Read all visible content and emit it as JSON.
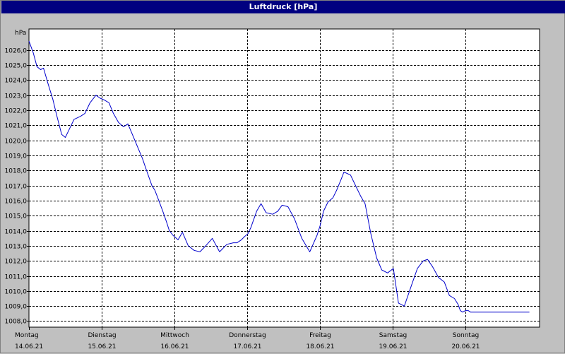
{
  "window": {
    "title": "Luftdruck [hPa]"
  },
  "chart_data": {
    "type": "line",
    "title": "Luftdruck [hPa]",
    "ylabel": "hPa",
    "xlabel": "",
    "ylim": [
      1007.6,
      1027.4
    ],
    "xlim": [
      0,
      7
    ],
    "grid": true,
    "y_ticks": [
      1008,
      1009,
      1010,
      1011,
      1012,
      1013,
      1014,
      1015,
      1016,
      1017,
      1018,
      1019,
      1020,
      1021,
      1022,
      1023,
      1024,
      1025,
      1026
    ],
    "y_tick_labels": [
      "1008,0",
      "1009,0",
      "1010,0",
      "1011,0",
      "1012,0",
      "1013,0",
      "1014,0",
      "1015,0",
      "1016,0",
      "1017,0",
      "1018,0",
      "1019,0",
      "1020,0",
      "1021,0",
      "1022,0",
      "1023,0",
      "1024,0",
      "1025,0",
      "1026,0"
    ],
    "x_ticks": [
      {
        "day": "Montag",
        "date": "14.06.21"
      },
      {
        "day": "Dienstag",
        "date": "15.06.21"
      },
      {
        "day": "Mittwoch",
        "date": "16.06.21"
      },
      {
        "day": "Donnerstag",
        "date": "17.06.21"
      },
      {
        "day": "Freitag",
        "date": "18.06.21"
      },
      {
        "day": "Samstag",
        "date": "19.06.21"
      },
      {
        "day": "Sonntag",
        "date": "20.06.21"
      }
    ],
    "series": [
      {
        "color": "#0000cc",
        "x": [
          0.0,
          0.06,
          0.11,
          0.16,
          0.2,
          0.26,
          0.33,
          0.38,
          0.45,
          0.5,
          0.56,
          0.62,
          0.71,
          0.77,
          0.84,
          0.92,
          0.98,
          1.03,
          1.1,
          1.16,
          1.23,
          1.3,
          1.36,
          1.43,
          1.49,
          1.56,
          1.61,
          1.69,
          1.73,
          1.77,
          1.84,
          1.89,
          1.93,
          1.98,
          2.05,
          2.11,
          2.19,
          2.27,
          2.35,
          2.43,
          2.52,
          2.62,
          2.72,
          2.81,
          2.86,
          2.92,
          2.96,
          3.01,
          3.05,
          3.13,
          3.19,
          3.26,
          3.35,
          3.42,
          3.48,
          3.56,
          3.65,
          3.75,
          3.86,
          3.96,
          4.0,
          4.05,
          4.11,
          4.18,
          4.23,
          4.29,
          4.33,
          4.42,
          4.48,
          4.56,
          4.62,
          4.7,
          4.78,
          4.85,
          4.93,
          5.01,
          5.08,
          5.16,
          5.26,
          5.34,
          5.42,
          5.48,
          5.55,
          5.63,
          5.71,
          5.78,
          5.85,
          5.9,
          5.93,
          5.96,
          6.0,
          6.04,
          6.07,
          6.12,
          6.18,
          6.26,
          6.31,
          6.39,
          6.44,
          6.5,
          6.55,
          6.61,
          6.67,
          6.7,
          6.74,
          6.79,
          6.83,
          6.86,
          6.88
        ],
        "y": [
          1026.6,
          1025.8,
          1024.9,
          1024.7,
          1024.8,
          1023.8,
          1022.7,
          1021.7,
          1020.4,
          1020.2,
          1020.8,
          1021.4,
          1021.6,
          1021.8,
          1022.5,
          1023.0,
          1022.8,
          1022.7,
          1022.5,
          1021.8,
          1021.2,
          1020.9,
          1021.1,
          1020.3,
          1019.6,
          1018.8,
          1018.1,
          1017.0,
          1016.7,
          1016.2,
          1015.3,
          1014.6,
          1014.0,
          1013.7,
          1013.4,
          1013.9,
          1013.0,
          1012.7,
          1012.6,
          1013.0,
          1013.5,
          1012.6,
          1013.1,
          1013.2,
          1013.2,
          1013.4,
          1013.6,
          1013.8,
          1014.2,
          1015.3,
          1015.8,
          1015.2,
          1015.1,
          1015.3,
          1015.7,
          1015.6,
          1014.8,
          1013.5,
          1012.6,
          1013.7,
          1014.3,
          1015.3,
          1015.9,
          1016.2,
          1016.7,
          1017.4,
          1017.9,
          1017.7,
          1017.1,
          1016.3,
          1015.8,
          1013.8,
          1012.2,
          1011.4,
          1011.2,
          1011.5,
          1009.2,
          1009.0,
          1010.4,
          1011.5,
          1012.0,
          1012.1,
          1011.6,
          1010.9,
          1010.6,
          1009.7,
          1009.5,
          1009.1,
          1008.7,
          1008.6,
          1008.7,
          1008.7,
          1008.6,
          1008.6,
          1008.6,
          1008.6,
          1008.6,
          1008.6,
          1008.6,
          1008.6,
          1008.6,
          1008.6,
          1008.6,
          1008.6,
          1008.6,
          1008.6,
          1008.6,
          1008.6,
          1008.6
        ]
      }
    ]
  }
}
